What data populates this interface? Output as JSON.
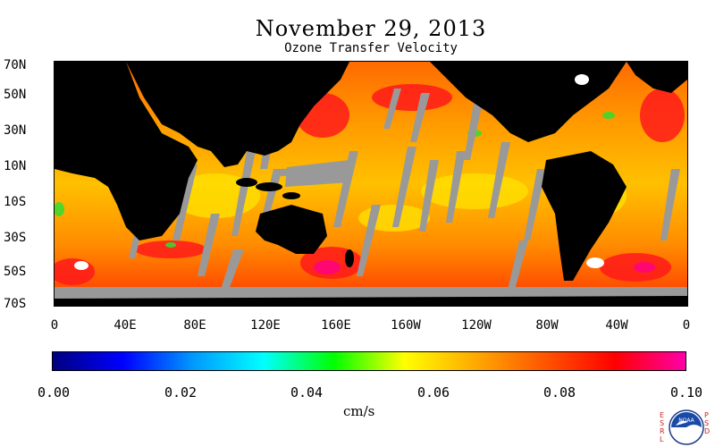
{
  "title": "November 29, 2013",
  "subtitle": "Ozone Transfer Velocity",
  "lat_ticks": [
    "70N",
    "50N",
    "30N",
    "10N",
    "10S",
    "30S",
    "50S",
    "70S"
  ],
  "lon_ticks": [
    "0",
    "40E",
    "80E",
    "120E",
    "160E",
    "160W",
    "120W",
    "80W",
    "40W",
    "0"
  ],
  "colorbar": {
    "ticks": [
      "0.00",
      "0.02",
      "0.04",
      "0.06",
      "0.08",
      "0.10"
    ],
    "unit": "cm/s",
    "colors": [
      "#000080",
      "#0000ff",
      "#0099ff",
      "#00ffff",
      "#00ff00",
      "#ffff00",
      "#ffaa00",
      "#ff5500",
      "#ff0000",
      "#ff00aa"
    ],
    "range": [
      0.0,
      0.1
    ]
  },
  "map_colors": {
    "land": "#000000",
    "missing": "#999999",
    "ocean_base": "#ff8800"
  },
  "logo": {
    "left_letters": "ESRL",
    "right_letters": "PSD",
    "name": "NOAA",
    "icon": "noaa-logo-icon"
  }
}
